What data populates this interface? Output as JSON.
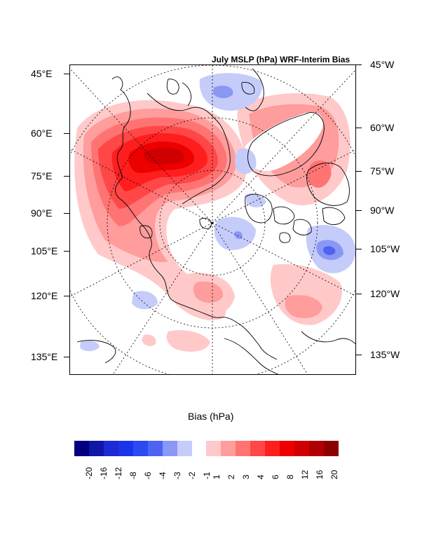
{
  "title": "July MSLP (hPa) WRF-Interim Bias",
  "left_labels": [
    "45°E",
    "60°E",
    "75°E",
    "90°E",
    "105°E",
    "120°E",
    "135°E"
  ],
  "right_labels": [
    "45°W",
    "60°W",
    "75°W",
    "90°W",
    "105°W",
    "120°W",
    "135°W"
  ],
  "colorbar_title": "Bias (hPa)",
  "colorbar": {
    "neg_colors": [
      "#000080",
      "#0f16a8",
      "#1c2bd3",
      "#1c34e9",
      "#2b4af3",
      "#4d63f2",
      "#8a97f5",
      "#c5ccfa"
    ],
    "neg_labels": [
      "-20",
      "-16",
      "-12",
      "-8",
      "-6",
      "-4",
      "-3",
      "-2",
      "-1"
    ],
    "pos_colors": [
      "#ffc9c9",
      "#ff9c9c",
      "#ff7373",
      "#ff4747",
      "#ff1e1e",
      "#ec0000",
      "#d00000",
      "#b00000",
      "#8d0000"
    ],
    "pos_labels": [
      "1",
      "2",
      "3",
      "4",
      "6",
      "8",
      "12",
      "16",
      "20"
    ]
  }
}
